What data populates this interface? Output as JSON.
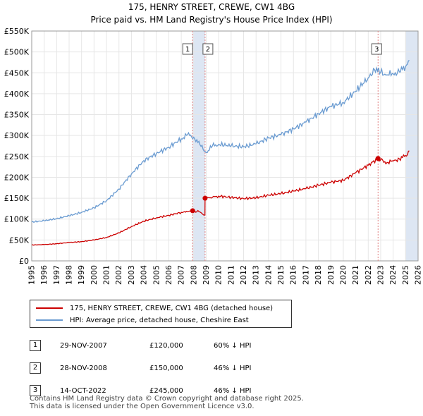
{
  "title": "175, HENRY STREET, CREWE, CW1 4BG",
  "subtitle": "Price paid vs. HM Land Registry's House Price Index (HPI)",
  "colors": {
    "property": "#cc0000",
    "hpi": "#6a9bd1",
    "shade": "#dde6f3",
    "marker": "#cc0000"
  },
  "chart_data": {
    "type": "line",
    "xlim": [
      1995,
      2026
    ],
    "ylim": [
      0,
      550000
    ],
    "x_ticks": [
      "1995",
      "1996",
      "1997",
      "1998",
      "1999",
      "2000",
      "2001",
      "2002",
      "2003",
      "2004",
      "2005",
      "2006",
      "2007",
      "2008",
      "2009",
      "2010",
      "2011",
      "2012",
      "2013",
      "2014",
      "2015",
      "2016",
      "2017",
      "2018",
      "2019",
      "2020",
      "2021",
      "2022",
      "2023",
      "2024",
      "2025",
      "2026"
    ],
    "y_ticks": [
      {
        "value": 0,
        "label": "£0"
      },
      {
        "value": 50000,
        "label": "£50K"
      },
      {
        "value": 100000,
        "label": "£100K"
      },
      {
        "value": 150000,
        "label": "£150K"
      },
      {
        "value": 200000,
        "label": "£200K"
      },
      {
        "value": 250000,
        "label": "£250K"
      },
      {
        "value": 300000,
        "label": "£300K"
      },
      {
        "value": 350000,
        "label": "£350K"
      },
      {
        "value": 400000,
        "label": "£400K"
      },
      {
        "value": 450000,
        "label": "£450K"
      },
      {
        "value": 500000,
        "label": "£500K"
      },
      {
        "value": 550000,
        "label": "£550K"
      }
    ],
    "grid": true,
    "shaded_regions": [
      {
        "from": 2007.91,
        "to": 2008.91
      },
      {
        "from": 2025.0,
        "to": 2026.0
      }
    ],
    "series": [
      {
        "name": "175, HENRY STREET, CREWE, CW1 4BG (detached house)",
        "color": "#cc0000",
        "x": [
          1995,
          1996,
          1997,
          1998,
          1999,
          2000,
          2001,
          2002,
          2003,
          2004,
          2005,
          2006,
          2007,
          2007.91,
          2008.5,
          2008.9,
          2008.91,
          2009.5,
          2010,
          2011,
          2012,
          2013,
          2014,
          2015,
          2016,
          2017,
          2018,
          2019,
          2020,
          2021,
          2022,
          2022.79,
          2023,
          2023.5,
          2024,
          2024.5,
          2025,
          2025.3
        ],
        "y": [
          38000,
          39000,
          41000,
          44000,
          46000,
          50000,
          56000,
          67000,
          82000,
          95000,
          103000,
          109000,
          116000,
          120000,
          117000,
          110000,
          150000,
          152000,
          155000,
          152000,
          149000,
          151000,
          157000,
          161000,
          167000,
          173000,
          181000,
          188000,
          193000,
          211000,
          229000,
          245000,
          242000,
          235000,
          239000,
          244000,
          252000,
          263000
        ]
      },
      {
        "name": "HPI: Average price, detached house, Cheshire East",
        "color": "#6a9bd1",
        "x": [
          1995,
          1996,
          1997,
          1998,
          1999,
          2000,
          2001,
          2002,
          2003,
          2004,
          2005,
          2006,
          2007,
          2007.5,
          2008,
          2008.5,
          2009,
          2009.5,
          2010,
          2011,
          2012,
          2013,
          2014,
          2015,
          2016,
          2017,
          2018,
          2019,
          2020,
          2021,
          2022,
          2022.5,
          2023,
          2023.5,
          2024,
          2024.5,
          2025,
          2025.3
        ],
        "y": [
          93000,
          96000,
          101000,
          108000,
          116000,
          127000,
          144000,
          172000,
          208000,
          240000,
          257000,
          272000,
          292000,
          302000,
          296000,
          278000,
          259000,
          275000,
          279000,
          275000,
          273000,
          280000,
          294000,
          302000,
          316000,
          332000,
          352000,
          369000,
          379000,
          406000,
          438000,
          458000,
          452000,
          445000,
          448000,
          452000,
          465000,
          480000
        ]
      }
    ],
    "transactions": [
      {
        "marker": "1",
        "x": 2007.91,
        "date": "29-NOV-2007",
        "price_value": 120000,
        "price": "£120,000",
        "hpi": "60% ↓ HPI"
      },
      {
        "marker": "2",
        "x": 2008.91,
        "date": "28-NOV-2008",
        "price_value": 150000,
        "price": "£150,000",
        "hpi": "46% ↓ HPI"
      },
      {
        "marker": "3",
        "x": 2022.79,
        "date": "14-OCT-2022",
        "price_value": 245000,
        "price": "£245,000",
        "hpi": "46% ↓ HPI"
      }
    ]
  },
  "legend": {
    "property": "175, HENRY STREET, CREWE, CW1 4BG (detached house)",
    "hpi": "HPI: Average price, detached house, Cheshire East"
  },
  "transactions_table": [
    {
      "num": "1",
      "date": "29-NOV-2007",
      "price": "£120,000",
      "hpi": "60% ↓ HPI"
    },
    {
      "num": "2",
      "date": "28-NOV-2008",
      "price": "£150,000",
      "hpi": "46% ↓ HPI"
    },
    {
      "num": "3",
      "date": "14-OCT-2022",
      "price": "£245,000",
      "hpi": "46% ↓ HPI"
    }
  ],
  "footer": {
    "line1": "Contains HM Land Registry data © Crown copyright and database right 2025.",
    "line2": "This data is licensed under the Open Government Licence v3.0."
  }
}
